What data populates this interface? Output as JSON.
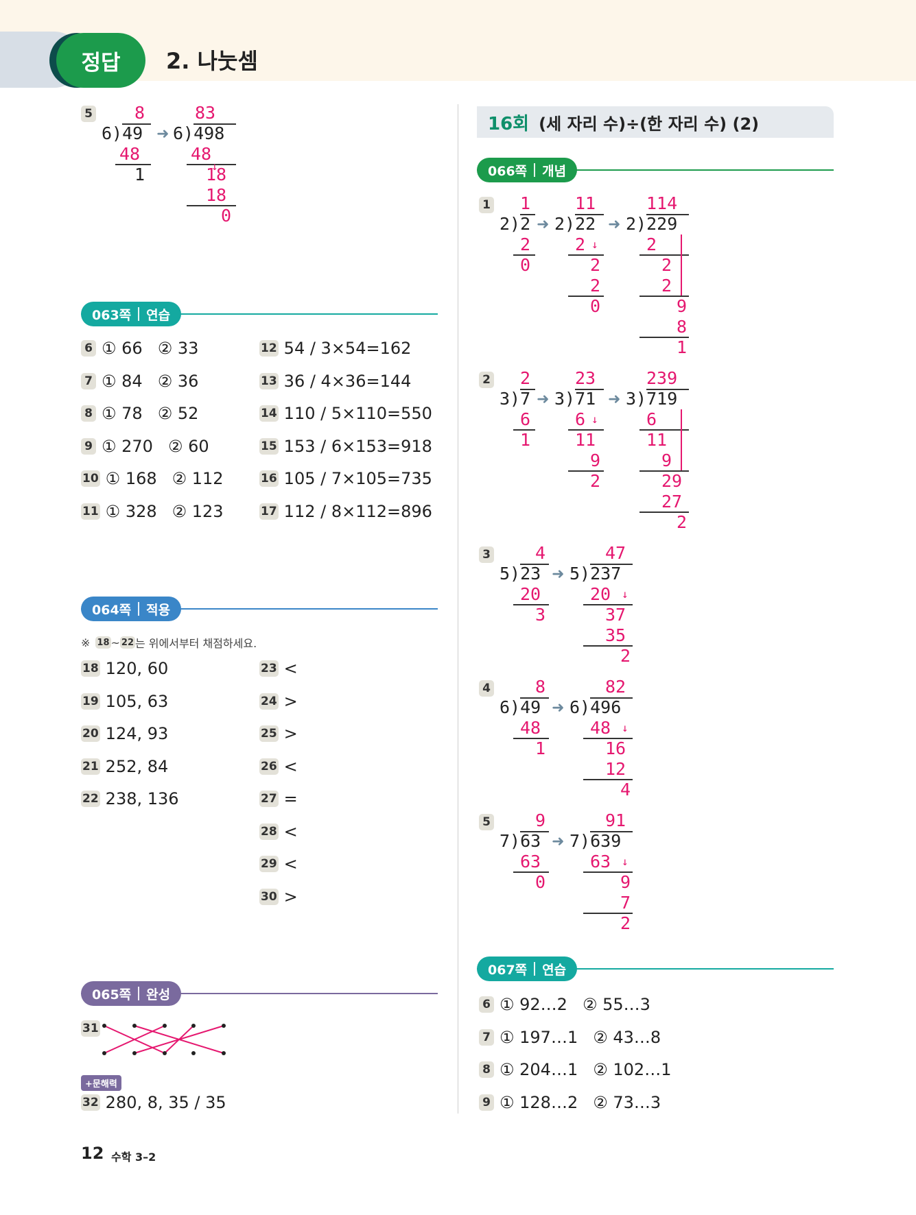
{
  "header": {
    "badge": "정답",
    "title": "2. 나눗셈"
  },
  "left": {
    "top_problem": {
      "num": "5"
    },
    "sec063": {
      "label": "063쪽",
      "type": "연습",
      "color": "#14a9a0",
      "rows": [
        {
          "n": "6",
          "a": "① 66",
          "b": "② 33",
          "n2": "12",
          "c": "54 / 3×54=162"
        },
        {
          "n": "7",
          "a": "① 84",
          "b": "② 36",
          "n2": "13",
          "c": "36 / 4×36=144"
        },
        {
          "n": "8",
          "a": "① 78",
          "b": "② 52",
          "n2": "14",
          "c": "110 / 5×110=550"
        },
        {
          "n": "9",
          "a": "① 270",
          "b": "② 60",
          "n2": "15",
          "c": "153 / 6×153=918"
        },
        {
          "n": "10",
          "a": "① 168",
          "b": "② 112",
          "n2": "16",
          "c": "105 / 7×105=735"
        },
        {
          "n": "11",
          "a": "① 328",
          "b": "② 123",
          "n2": "17",
          "c": "112 / 8×112=896"
        }
      ]
    },
    "sec064": {
      "label": "064쪽",
      "type": "적용",
      "color": "#3a86c8",
      "note_prefix": "※",
      "note_a": "18",
      "note_mid": "~",
      "note_b": "22",
      "note_text": "는 위에서부터 채점하세요.",
      "left_rows": [
        {
          "n": "18",
          "v": "120, 60"
        },
        {
          "n": "19",
          "v": "105, 63"
        },
        {
          "n": "20",
          "v": "124, 93"
        },
        {
          "n": "21",
          "v": "252, 84"
        },
        {
          "n": "22",
          "v": "238, 136"
        }
      ],
      "right_rows": [
        {
          "n": "23",
          "v": "<"
        },
        {
          "n": "24",
          "v": ">"
        },
        {
          "n": "25",
          "v": ">"
        },
        {
          "n": "26",
          "v": "<"
        },
        {
          "n": "27",
          "v": "="
        },
        {
          "n": "28",
          "v": "<"
        },
        {
          "n": "29",
          "v": "<"
        },
        {
          "n": "30",
          "v": ">"
        }
      ]
    },
    "sec065": {
      "label": "065쪽",
      "type": "완성",
      "color": "#7a6a9e",
      "q31": "31",
      "tag": "+문해력",
      "q32": "32",
      "q32_answer": "280, 8, 35 / 35"
    },
    "footer": {
      "page": "12",
      "subject": "수학 3–2"
    }
  },
  "right": {
    "title_num": "16회",
    "title_text": "(세 자리 수)÷(한 자리 수) (2)",
    "sec066": {
      "label": "066쪽",
      "type": "개념",
      "color": "#1c9b4c",
      "problems": [
        "1",
        "2",
        "3",
        "4",
        "5"
      ]
    },
    "sec067": {
      "label": "067쪽",
      "type": "연습",
      "color": "#14a9a0",
      "rows": [
        {
          "n": "6",
          "a": "① 92…2",
          "b": "② 55…3"
        },
        {
          "n": "7",
          "a": "① 197…1",
          "b": "② 43…8"
        },
        {
          "n": "8",
          "a": "① 204…1",
          "b": "② 102…1"
        },
        {
          "n": "9",
          "a": "① 128…2",
          "b": "② 73…3"
        }
      ]
    }
  },
  "colors": {
    "accent_pink": "#e5176f",
    "green": "#1c9b4c",
    "arrow": "#6d8a9e"
  }
}
